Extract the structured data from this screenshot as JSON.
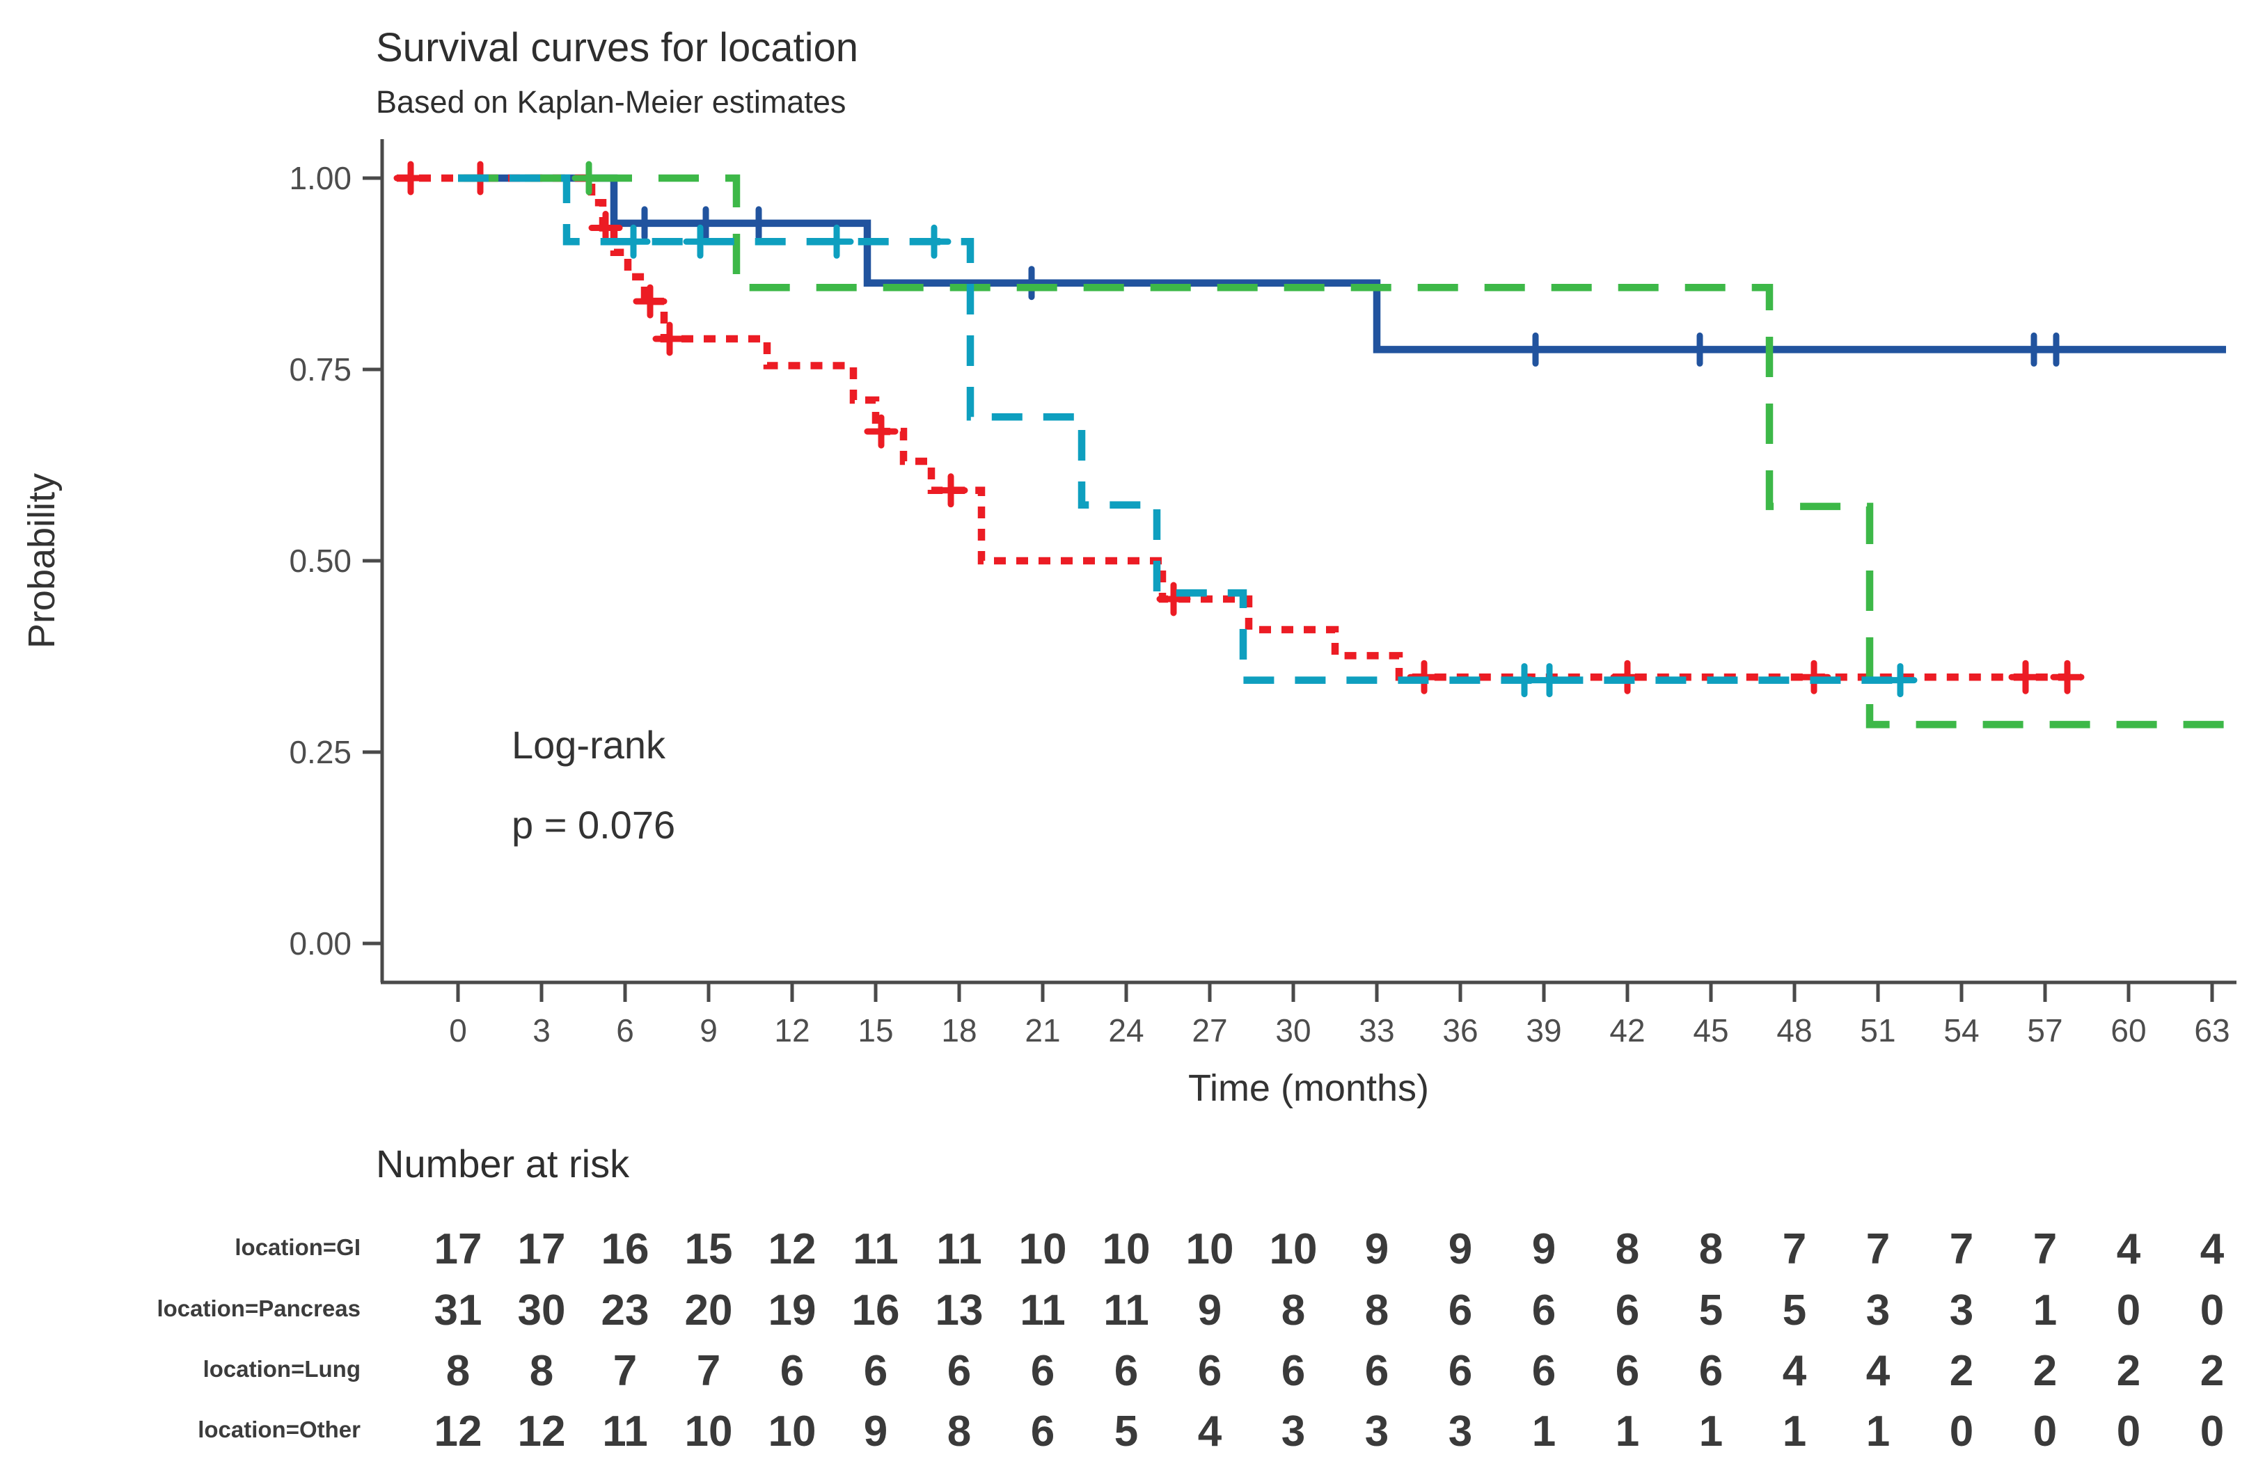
{
  "chart_data": {
    "type": "line",
    "variant": "kaplan-meier-step",
    "title": "Survival curves for location",
    "subtitle": "Based on Kaplan-Meier estimates",
    "xlabel": "Time (months)",
    "ylabel": "Probability",
    "annotation": {
      "line1": "Log-rank",
      "line2": "p = 0.076"
    },
    "xlim": [
      -2.5,
      64
    ],
    "ylim": [
      0,
      1
    ],
    "grid": false,
    "legend_position": "none",
    "x_ticks": [
      0,
      3,
      6,
      9,
      12,
      15,
      18,
      21,
      24,
      27,
      30,
      33,
      36,
      39,
      42,
      45,
      48,
      51,
      54,
      57,
      60,
      63
    ],
    "y_ticks": [
      {
        "value": 1.0,
        "label": "1.00"
      },
      {
        "value": 0.75,
        "label": "0.75"
      },
      {
        "value": 0.5,
        "label": "0.50"
      },
      {
        "value": 0.25,
        "label": "0.25"
      },
      {
        "value": 0.0,
        "label": "0.00"
      }
    ],
    "series": [
      {
        "name": "location=GI",
        "color": "#21539e",
        "dash": "solid",
        "steps": [
          [
            0,
            1
          ],
          [
            5.6,
            0.941
          ],
          [
            14.7,
            0.863
          ],
          [
            33,
            0.776
          ]
        ],
        "end": 63.5,
        "censors": [
          [
            6.7,
            0.941
          ],
          [
            8.9,
            0.941
          ],
          [
            10.8,
            0.941
          ],
          [
            20.6,
            0.863
          ],
          [
            38.7,
            0.776
          ],
          [
            44.6,
            0.776
          ],
          [
            56.6,
            0.776
          ],
          [
            57.4,
            0.776
          ]
        ]
      },
      {
        "name": "location=Pancreas",
        "color": "#ec1c24",
        "dash": "dotted",
        "steps": [
          [
            -2.2,
            1
          ],
          [
            4.8,
            0.968
          ],
          [
            5.2,
            0.935
          ],
          [
            5.6,
            0.903
          ],
          [
            6.1,
            0.871
          ],
          [
            6.7,
            0.839
          ],
          [
            7.4,
            0.79
          ],
          [
            11.1,
            0.755
          ],
          [
            14.2,
            0.71
          ],
          [
            15.0,
            0.669
          ],
          [
            16.0,
            0.63
          ],
          [
            17.0,
            0.592
          ],
          [
            18.8,
            0.5
          ],
          [
            25.3,
            0.45
          ],
          [
            28.4,
            0.41
          ],
          [
            31.5,
            0.376
          ],
          [
            33.8,
            0.348
          ]
        ],
        "end": 58.3,
        "censors": [
          [
            -1.7,
            1
          ],
          [
            0.8,
            1
          ],
          [
            5.3,
            0.935
          ],
          [
            6.9,
            0.839
          ],
          [
            7.6,
            0.79
          ],
          [
            15.2,
            0.669
          ],
          [
            17.7,
            0.592
          ],
          [
            25.7,
            0.45
          ],
          [
            34.7,
            0.348
          ],
          [
            42.0,
            0.348
          ],
          [
            48.7,
            0.348
          ],
          [
            56.3,
            0.348
          ],
          [
            57.8,
            0.348
          ]
        ]
      },
      {
        "name": "location=Lung",
        "color": "#3db848",
        "dash": "longdash",
        "steps": [
          [
            0,
            1
          ],
          [
            10,
            0.857
          ],
          [
            47.1,
            0.571
          ],
          [
            50.7,
            0.286
          ]
        ],
        "end": 63.5,
        "censors": [
          [
            4.7,
            1
          ]
        ]
      },
      {
        "name": "location=Other",
        "color": "#0e9fbf",
        "dash": "mediumdash",
        "steps": [
          [
            0,
            1
          ],
          [
            3.9,
            0.917
          ],
          [
            18.4,
            0.688
          ],
          [
            22.4,
            0.573
          ],
          [
            25.1,
            0.458
          ],
          [
            28.2,
            0.344
          ]
        ],
        "end": 52.2,
        "censors": [
          [
            6.3,
            0.917
          ],
          [
            8.7,
            0.917
          ],
          [
            13.6,
            0.917
          ],
          [
            17.1,
            0.917
          ],
          [
            38.3,
            0.344
          ],
          [
            39.2,
            0.344
          ],
          [
            51.8,
            0.344
          ]
        ]
      }
    ],
    "risk_table": {
      "header": "Number at risk",
      "times": [
        0,
        3,
        6,
        9,
        12,
        15,
        18,
        21,
        24,
        27,
        30,
        33,
        36,
        39,
        42,
        45,
        48,
        51,
        54,
        57,
        60,
        63
      ],
      "rows": [
        {
          "label": "location=GI",
          "color": "#4472b8",
          "values": [
            17,
            17,
            16,
            15,
            12,
            11,
            11,
            10,
            10,
            10,
            10,
            9,
            9,
            9,
            8,
            8,
            7,
            7,
            7,
            7,
            4,
            4
          ]
        },
        {
          "label": "location=Pancreas",
          "color": "#f4474f",
          "values": [
            31,
            30,
            23,
            20,
            19,
            16,
            13,
            11,
            11,
            9,
            8,
            8,
            6,
            6,
            6,
            5,
            5,
            3,
            3,
            1,
            0,
            0
          ]
        },
        {
          "label": "location=Lung",
          "color": "#45c24e",
          "values": [
            8,
            8,
            7,
            7,
            6,
            6,
            6,
            6,
            6,
            6,
            6,
            6,
            6,
            6,
            6,
            6,
            4,
            4,
            2,
            2,
            2,
            2
          ]
        },
        {
          "label": "location=Other",
          "color": "#2eb4ce",
          "values": [
            12,
            12,
            11,
            10,
            10,
            9,
            8,
            6,
            5,
            4,
            3,
            3,
            3,
            1,
            1,
            1,
            1,
            1,
            0,
            0,
            0,
            0
          ]
        }
      ]
    }
  }
}
